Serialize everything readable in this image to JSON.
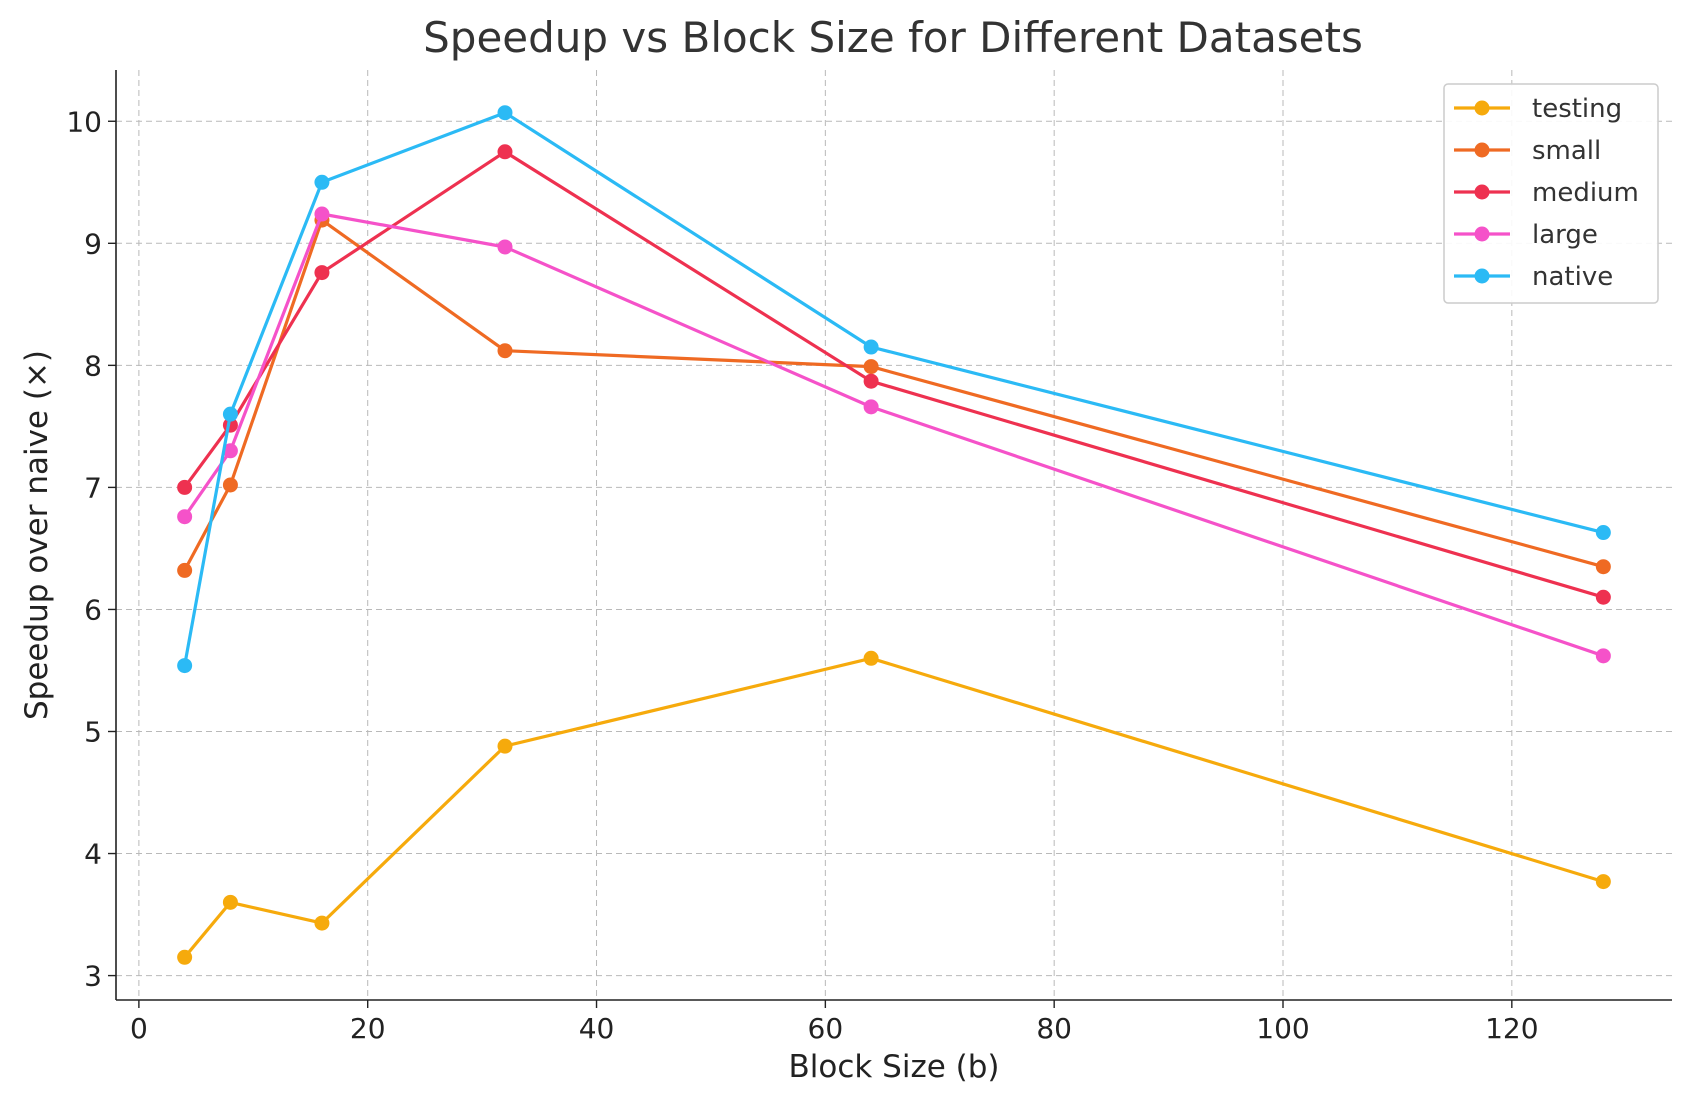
{
  "chart_data": {
    "type": "line",
    "title": "Speedup vs Block Size for Different Datasets",
    "xlabel": "Block Size (b)",
    "ylabel": "Speedup over naive (×)",
    "xlim": [
      -2,
      134
    ],
    "ylim": [
      2.8,
      10.42
    ],
    "xticks": [
      0,
      20,
      40,
      60,
      80,
      100,
      120
    ],
    "yticks": [
      3,
      4,
      5,
      6,
      7,
      8,
      9,
      10
    ],
    "grid": true,
    "legend_position": "top-right",
    "x": [
      4,
      8,
      16,
      32,
      64,
      128
    ],
    "series": [
      {
        "name": "testing",
        "color": "#f6aa0c",
        "values": [
          3.15,
          3.6,
          3.43,
          4.88,
          5.6,
          3.77
        ]
      },
      {
        "name": "small",
        "color": "#ef6a23",
        "values": [
          6.32,
          7.02,
          9.19,
          8.12,
          7.99,
          6.35
        ]
      },
      {
        "name": "medium",
        "color": "#ee3150",
        "values": [
          7.0,
          7.51,
          8.76,
          9.75,
          7.87,
          6.1
        ]
      },
      {
        "name": "large",
        "color": "#f552c9",
        "values": [
          6.76,
          7.3,
          9.24,
          8.97,
          7.66,
          5.62
        ]
      },
      {
        "name": "native",
        "color": "#2bbaf5",
        "values": [
          5.54,
          7.6,
          9.5,
          10.07,
          8.15,
          6.63
        ]
      }
    ]
  }
}
